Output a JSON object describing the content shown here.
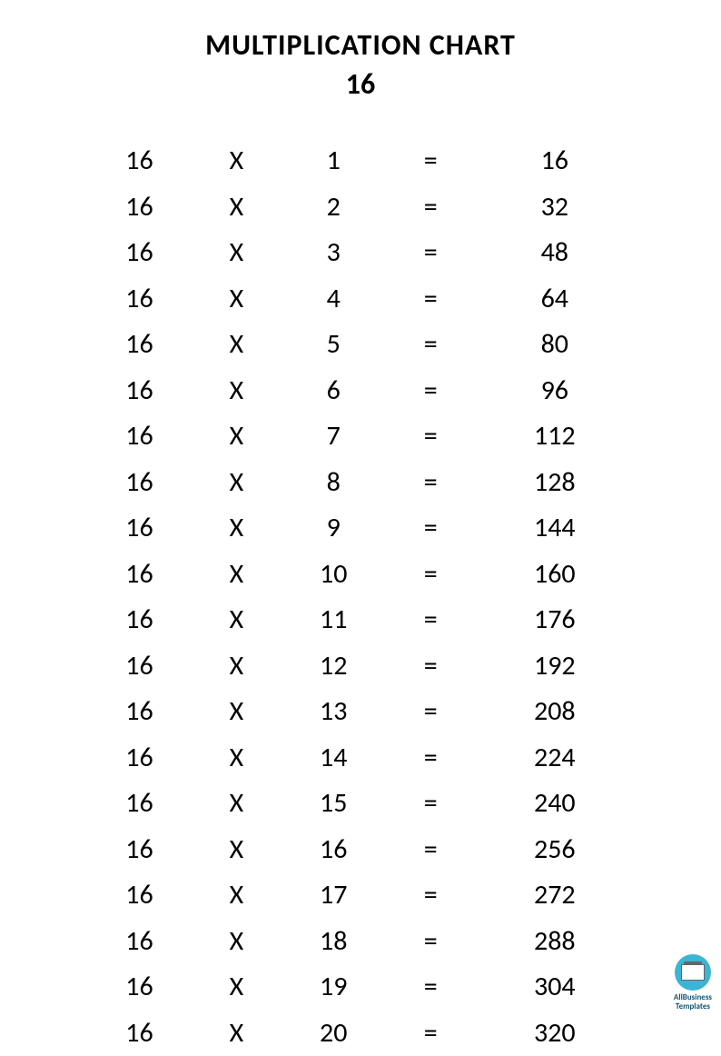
{
  "header": {
    "title": "MULTIPLICATION CHART",
    "subtitle": "16"
  },
  "table": {
    "type": "table",
    "operator_symbol": "X",
    "equals_symbol": "=",
    "rows": [
      {
        "multiplicand": "16",
        "multiplier": "1",
        "result": "16"
      },
      {
        "multiplicand": "16",
        "multiplier": "2",
        "result": "32"
      },
      {
        "multiplicand": "16",
        "multiplier": "3",
        "result": "48"
      },
      {
        "multiplicand": "16",
        "multiplier": "4",
        "result": "64"
      },
      {
        "multiplicand": "16",
        "multiplier": "5",
        "result": "80"
      },
      {
        "multiplicand": "16",
        "multiplier": "6",
        "result": "96"
      },
      {
        "multiplicand": "16",
        "multiplier": "7",
        "result": "112"
      },
      {
        "multiplicand": "16",
        "multiplier": "8",
        "result": "128"
      },
      {
        "multiplicand": "16",
        "multiplier": "9",
        "result": "144"
      },
      {
        "multiplicand": "16",
        "multiplier": "10",
        "result": "160"
      },
      {
        "multiplicand": "16",
        "multiplier": "11",
        "result": "176"
      },
      {
        "multiplicand": "16",
        "multiplier": "12",
        "result": "192"
      },
      {
        "multiplicand": "16",
        "multiplier": "13",
        "result": "208"
      },
      {
        "multiplicand": "16",
        "multiplier": "14",
        "result": "224"
      },
      {
        "multiplicand": "16",
        "multiplier": "15",
        "result": "240"
      },
      {
        "multiplicand": "16",
        "multiplier": "16",
        "result": "256"
      },
      {
        "multiplicand": "16",
        "multiplier": "17",
        "result": "272"
      },
      {
        "multiplicand": "16",
        "multiplier": "18",
        "result": "288"
      },
      {
        "multiplicand": "16",
        "multiplier": "19",
        "result": "304"
      },
      {
        "multiplicand": "16",
        "multiplier": "20",
        "result": "320"
      }
    ],
    "font_size": 30,
    "text_color": "#000000",
    "background_color": "#ffffff"
  },
  "watermark": {
    "line1": "AllBusiness",
    "line2": "Templates",
    "icon_bg_color": "#3cb4d4",
    "text_color": "#105570"
  }
}
